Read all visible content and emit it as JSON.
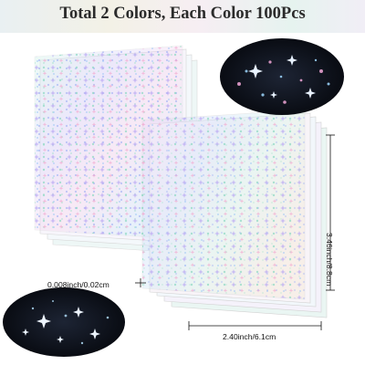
{
  "banner": {
    "title": "Total 2 Colors, Each Color 100Pcs"
  },
  "product": {
    "image_icon": "holographic-star-sticker-sheets",
    "finishes": [
      "holographic stars",
      "clear holographic stars"
    ]
  },
  "dimensions": {
    "thickness": "0.008inch/0.02cm",
    "width": "2.40inch/6.1cm",
    "height": "3.46inch/8.8cm"
  },
  "colors": {
    "banner_text": "#2b2b2b",
    "dark_swatch": "#0c0f16",
    "dimension_line": "#111111"
  }
}
